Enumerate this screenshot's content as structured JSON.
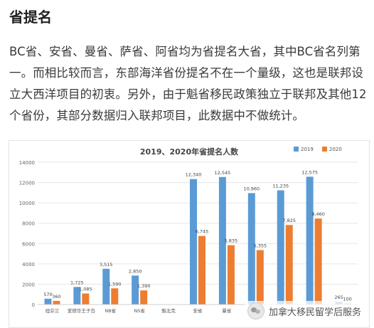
{
  "heading": "省提名",
  "paragraph": "BC省、安省、曼省、萨省、阿省均为省提名大省，其中BC省名列第一。而相比较而言，东部海洋省份提名不在一个量级，这也是联邦设立大西洋项目的初衷。另外，由于魁省移民政策独立于联邦及其他12个省份，其部分数据归入联邦项目，此数据中不做统计。",
  "watermark": {
    "text": "加拿大移民留学后服务",
    "icon": "wechat-icon"
  },
  "chart_data": {
    "type": "bar",
    "title": "2019、2020年省提名人数",
    "categories": [
      "纽芬兰",
      "爱德华王子岛",
      "NB省",
      "NS省",
      "魁北克",
      "安省",
      "曼省",
      "萨省",
      "阿省",
      "BC省",
      "育空"
    ],
    "series": [
      {
        "name": "2019",
        "color": "#5b9bd5",
        "values": [
          570,
          1725,
          3515,
          2850,
          0,
          12340,
          12545,
          10960,
          11235,
          12575,
          265
        ]
      },
      {
        "name": "2020",
        "color": "#ed7d31",
        "values": [
          360,
          1085,
          1590,
          1390,
          0,
          6745,
          5835,
          5355,
          7825,
          8460,
          100
        ]
      }
    ],
    "data_labels": {
      "2019": [
        "570",
        "1,725",
        "3,515",
        "2,850",
        "",
        "12,340",
        "12,545",
        "10,960",
        "11,235",
        "12,575",
        "265"
      ],
      "2020": [
        "360",
        "1,085",
        "1,590",
        "1,390",
        "",
        "6,745",
        "5,835",
        "5,355",
        "7,825",
        "8,460",
        "100"
      ]
    },
    "yticks": [
      "0",
      "2000",
      "4000",
      "6000",
      "8000",
      "10000",
      "12000",
      "14000"
    ],
    "ylim": [
      0,
      14000
    ],
    "grid": true,
    "legend_position": "top-right",
    "xlabel": "",
    "ylabel": ""
  }
}
